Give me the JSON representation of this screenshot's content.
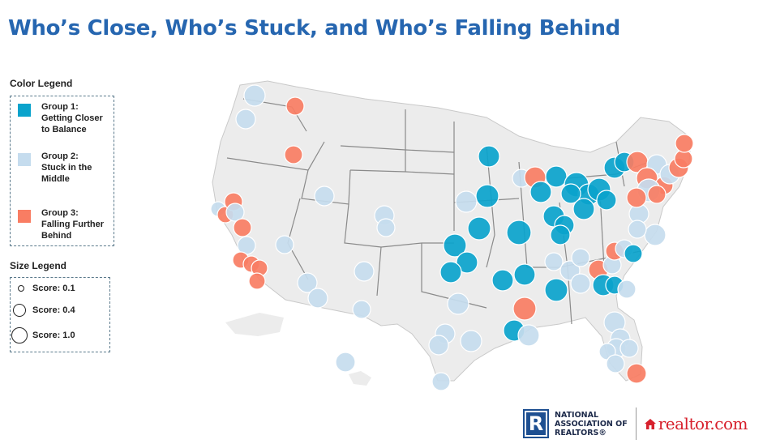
{
  "title": "Who’s Close, Who’s Stuck, and Who’s Falling Behind",
  "colors": {
    "group1": "#0aa3cc",
    "group2": "#c5dcee",
    "group3": "#f97d63",
    "title": "#2666b0",
    "map_fill": "#ececec",
    "map_border": "#8a8a8a"
  },
  "color_legend": {
    "heading": "Color Legend",
    "items": [
      {
        "key": "group1",
        "label": "Group 1:\nGetting Closer\nto Balance"
      },
      {
        "key": "group2",
        "label": "Group 2:\nStuck in the\nMiddle"
      },
      {
        "key": "group3",
        "label": "Group 3:\nFalling Further\nBehind"
      }
    ]
  },
  "size_legend": {
    "heading": "Size Legend",
    "items": [
      {
        "score": 0.1,
        "label": "Score: 0.1"
      },
      {
        "score": 0.4,
        "label": "Score: 0.4"
      },
      {
        "score": 1.0,
        "label": "Score: 1.0"
      }
    ]
  },
  "footer": {
    "nar_mark": "R",
    "nar_text": "NATIONAL\nASSOCIATION OF\nREALTORS®",
    "realtor_text": "realtor.com"
  }
}
